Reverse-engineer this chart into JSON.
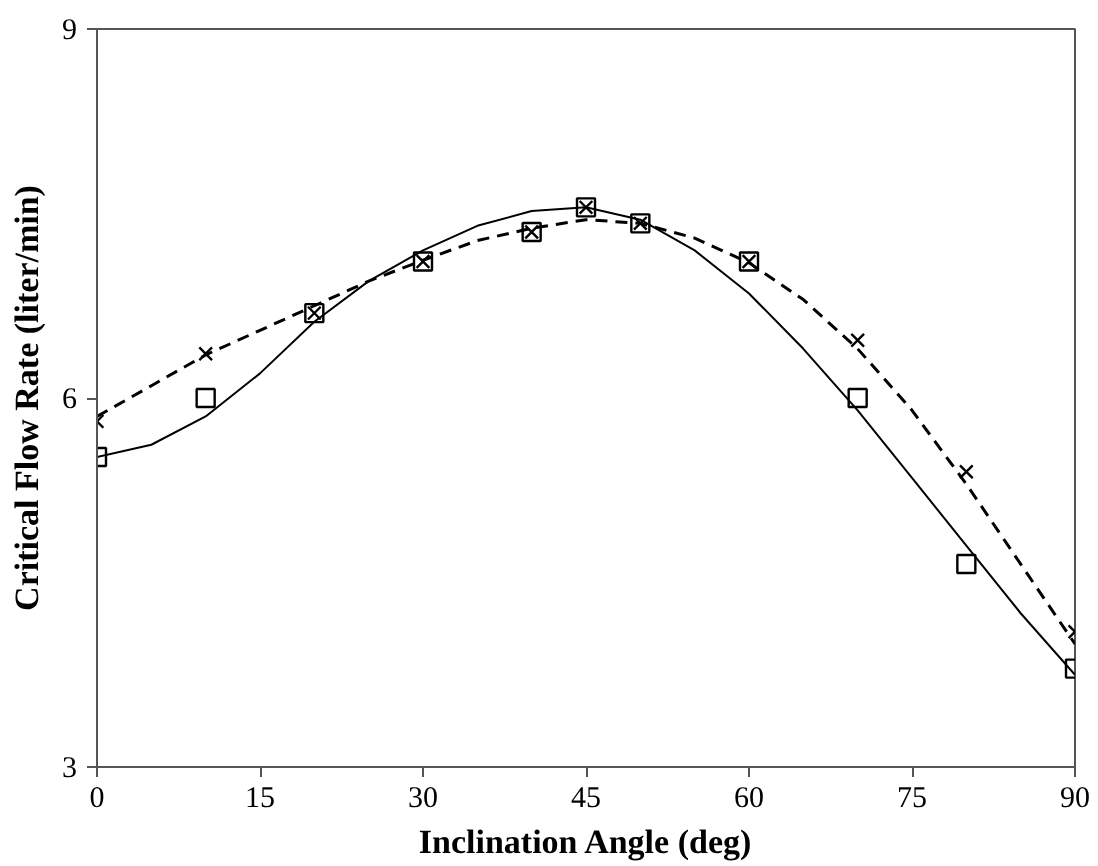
{
  "chart_data": {
    "type": "scatter",
    "xlabel": "Inclination Angle (deg)",
    "ylabel": "Critical Flow Rate (liter/min)",
    "xlim": [
      0,
      90
    ],
    "ylim": [
      3,
      9
    ],
    "xticks": [
      0,
      15,
      30,
      45,
      60,
      75,
      90
    ],
    "yticks": [
      3,
      6,
      9
    ],
    "grid": false,
    "series": [
      {
        "marker": "square",
        "color": "#000000",
        "x": [
          0,
          10,
          20,
          30,
          40,
          45,
          50,
          60,
          70,
          80,
          90
        ],
        "values": [
          5.52,
          6.0,
          6.69,
          7.11,
          7.35,
          7.55,
          7.42,
          7.11,
          6.0,
          4.65,
          3.8
        ]
      },
      {
        "marker": "cross",
        "color": "#000000",
        "x": [
          0,
          10,
          20,
          30,
          40,
          45,
          50,
          60,
          70,
          80,
          90
        ],
        "values": [
          5.81,
          6.36,
          6.69,
          7.11,
          7.35,
          7.55,
          7.42,
          7.11,
          6.47,
          5.4,
          4.1
        ]
      },
      {
        "type": "line",
        "line_style": "solid",
        "color": "#000000",
        "x": [
          0,
          5,
          10,
          15,
          20,
          25,
          30,
          35,
          40,
          45,
          50,
          55,
          60,
          65,
          70,
          75,
          80,
          85,
          90
        ],
        "values": [
          5.52,
          5.62,
          5.85,
          6.2,
          6.62,
          6.95,
          7.2,
          7.4,
          7.52,
          7.55,
          7.45,
          7.2,
          6.85,
          6.4,
          5.9,
          5.35,
          4.8,
          4.25,
          3.75
        ]
      },
      {
        "type": "line",
        "line_style": "dashed",
        "color": "#000000",
        "x": [
          0,
          5,
          10,
          15,
          20,
          25,
          30,
          35,
          40,
          45,
          50,
          55,
          60,
          65,
          70,
          75,
          80,
          85,
          90
        ],
        "values": [
          5.85,
          6.1,
          6.35,
          6.55,
          6.75,
          6.95,
          7.12,
          7.28,
          7.38,
          7.45,
          7.42,
          7.3,
          7.1,
          6.8,
          6.4,
          5.9,
          5.3,
          4.65,
          4.0
        ]
      }
    ]
  }
}
